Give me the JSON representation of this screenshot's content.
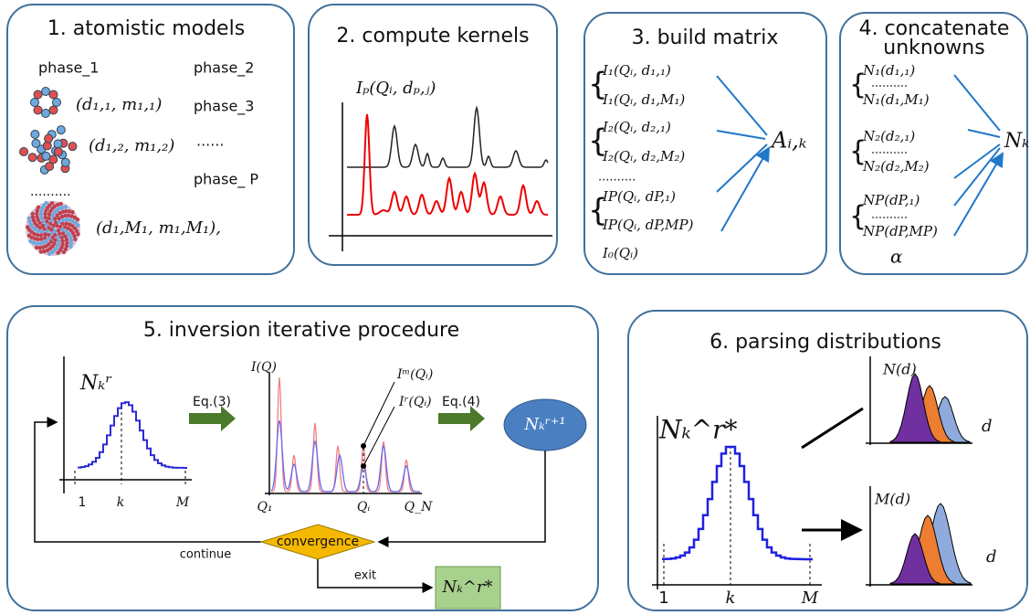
{
  "panel1": {
    "title": "1. atomistic models",
    "phases": [
      "phase_1",
      "phase_2",
      "phase_3",
      "......",
      "phase_ P"
    ],
    "models": [
      "(d₁,₁, m₁,₁)",
      "(d₁,₂, m₁,₂)",
      "..........",
      "(d₁,M₁, m₁,M₁),"
    ]
  },
  "panel2": {
    "title": "2. compute kernels",
    "ylabel": "Iₚ(Qᵢ, dₚ,ⱼ)"
  },
  "panel3": {
    "title": "3. build matrix",
    "rows": [
      "I₁(Qᵢ, d₁,₁)",
      "I₁(Qᵢ, d₁,M₁)",
      "I₂(Qᵢ, d₂,₁)",
      "I₂(Qᵢ, d₂,M₂)",
      "..........",
      "IP(Qᵢ, dP,₁)",
      "IP(Qᵢ, dP,MP)",
      "I₀(Qᵢ)"
    ],
    "result": "Aᵢ,ₖ"
  },
  "panel4": {
    "title": [
      "4. concatenate",
      "unknowns"
    ],
    "rows": [
      "N₁(d₁,₁)",
      "N₁(d₁,M₁)",
      "N₂(d₂,₁)",
      "N₂(d₂,M₂)",
      "NP(dP,₁)",
      "NP(dP,MP)",
      "α"
    ],
    "result": "Nₖ"
  },
  "panel5": {
    "title": "5. inversion iterative procedure",
    "nkr": "Nₖʳ",
    "xlabels": [
      "1",
      "k",
      "M"
    ],
    "eq3": "Eq.(3)",
    "iq": "I(Q)",
    "im": "Iᵐ(Qᵢ)",
    "ir": "Iʳ(Qᵢ)",
    "qlabels": [
      "Q₁",
      "Qᵢ",
      "Q_N"
    ],
    "eq4": "Eq.(4)",
    "next": "Nₖʳ⁺¹",
    "convergence": "convergence",
    "continue": "continue",
    "exit": "exit",
    "final": "Nₖ^r*"
  },
  "panel6": {
    "title": "6. parsing distributions",
    "nk": "Nₖ^r*",
    "xlabels": [
      "1",
      "k",
      "M"
    ],
    "nd": "N(d)",
    "md": "M(d)",
    "d": [
      "d",
      "d"
    ]
  }
}
